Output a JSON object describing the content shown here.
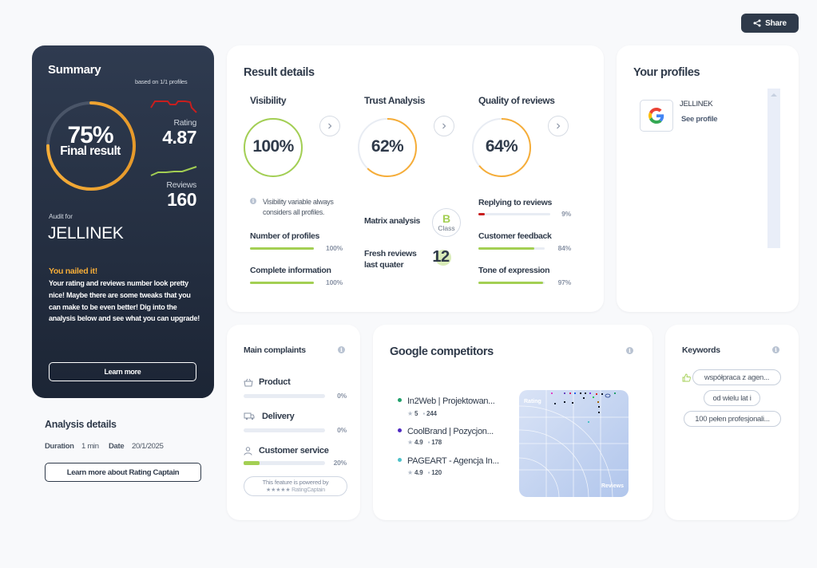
{
  "share_label": "Share",
  "summary": {
    "title": "Summary",
    "based_on": "based on 1/1 profiles",
    "final_percent": "75%",
    "final_label": "Final result",
    "final_value": 0.75,
    "rating_label": "Rating",
    "rating_value": "4.87",
    "reviews_label": "Reviews",
    "reviews_value": "160",
    "audit_for_label": "Audit for",
    "audit_name": "JELLINEK",
    "headline": "You nailed it!",
    "message": "Your rating and reviews number look pretty nice! Maybe there are some tweaks that you can make to be even better! Dig into the analysis below and see what you can upgrade!",
    "learn_more": "Learn more"
  },
  "analysis": {
    "title": "Analysis details",
    "duration_label": "Duration",
    "duration_value": "1 min",
    "date_label": "Date",
    "date_value": "20/1/2025",
    "learn_more_rc": "Learn more about Rating Captain"
  },
  "result_details": {
    "title": "Result details",
    "visibility": {
      "title": "Visibility",
      "percent": "100%",
      "value": 1.0,
      "note": "Visibility variable always considers all profiles.",
      "rows": [
        {
          "label": "Number of profiles",
          "percent": "100%",
          "value": 1.0
        },
        {
          "label": "Complete information",
          "percent": "100%",
          "value": 1.0
        }
      ]
    },
    "trust": {
      "title": "Trust Analysis",
      "percent": "62%",
      "value": 0.62,
      "matrix_label": "Matrix analysis",
      "matrix_grade": "B",
      "matrix_class": "Class",
      "fresh_label": "Fresh reviews last quater",
      "fresh_value": "12"
    },
    "quality": {
      "title": "Quality of reviews",
      "percent": "64%",
      "value": 0.64,
      "rows": [
        {
          "label": "Replying to reviews",
          "percent": "9%",
          "value": 0.09,
          "color": "#c81e1e"
        },
        {
          "label": "Customer feedback",
          "percent": "84%",
          "value": 0.84,
          "color": "#a3cf53"
        },
        {
          "label": "Tone of expression",
          "percent": "97%",
          "value": 0.97,
          "color": "#a3cf53"
        }
      ]
    }
  },
  "profiles": {
    "title": "Your profiles",
    "items": [
      {
        "name": "JELLINEK",
        "link": "See profile"
      }
    ]
  },
  "complaints": {
    "title": "Main complaints",
    "items": [
      {
        "label": "Product",
        "percent": "0%",
        "value": 0.0
      },
      {
        "label": "Delivery",
        "percent": "0%",
        "value": 0.0
      },
      {
        "label": "Customer service",
        "percent": "20%",
        "value": 0.2
      }
    ],
    "powered_by": "This feature is powered by",
    "powered_brand": "★★★★★ RatingCaptain"
  },
  "competitors": {
    "title": "Google competitors",
    "items": [
      {
        "name": "In2Web | Projektowan...",
        "rating": "5",
        "reviews": "244",
        "color": "#22a06b"
      },
      {
        "name": "CoolBrand | Pozycjon...",
        "rating": "4.9",
        "reviews": "178",
        "color": "#4f2ac2"
      },
      {
        "name": "PAGEART - Agencja In...",
        "rating": "4.9",
        "reviews": "120",
        "color": "#4fc1c9"
      }
    ],
    "map_rating_label": "Rating",
    "map_reviews_label": "Reviews"
  },
  "keywords": {
    "title": "Keywords",
    "items": [
      "współpraca z agen...",
      "od wielu lat i",
      "100 pełen profesjonali..."
    ]
  },
  "colors": {
    "accent_green": "#a3cf53",
    "accent_orange": "#f6ad38",
    "dark": "#2f3a4a"
  }
}
